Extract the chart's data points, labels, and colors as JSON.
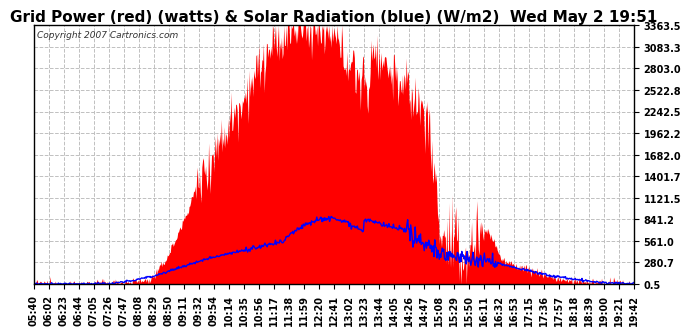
{
  "title": "Grid Power (red) (watts) & Solar Radiation (blue) (W/m2)  Wed May 2 19:51",
  "copyright": "Copyright 2007 Cartronics.com",
  "background_color": "#ffffff",
  "plot_bg_color": "#ffffff",
  "grid_color": "#c0c0c0",
  "yticks": [
    0.5,
    280.7,
    561.0,
    841.2,
    1121.5,
    1401.7,
    1682.0,
    1962.2,
    2242.5,
    2522.8,
    2803.0,
    3083.3,
    3363.5
  ],
  "ytick_labels": [
    "0.5",
    "280.7",
    "561.0",
    "841.2",
    "1121.5",
    "1401.7",
    "1682.0",
    "1962.2",
    "2242.5",
    "2522.8",
    "2803.0",
    "3083.3",
    "3363.5"
  ],
  "ymin": 0.5,
  "ymax": 3363.5,
  "xtick_labels": [
    "05:40",
    "06:02",
    "06:23",
    "06:44",
    "07:05",
    "07:26",
    "07:47",
    "08:08",
    "08:29",
    "08:50",
    "09:11",
    "09:32",
    "09:54",
    "10:14",
    "10:35",
    "10:56",
    "11:17",
    "11:38",
    "11:59",
    "12:20",
    "12:41",
    "13:02",
    "13:23",
    "13:44",
    "14:05",
    "14:26",
    "14:47",
    "15:08",
    "15:29",
    "15:50",
    "16:11",
    "16:32",
    "16:53",
    "17:15",
    "17:36",
    "17:57",
    "18:18",
    "18:39",
    "19:00",
    "19:21",
    "19:42"
  ],
  "red_color": "#ff0000",
  "blue_color": "#0000ff",
  "title_fontsize": 11,
  "tick_fontsize": 7,
  "n_points": 800
}
